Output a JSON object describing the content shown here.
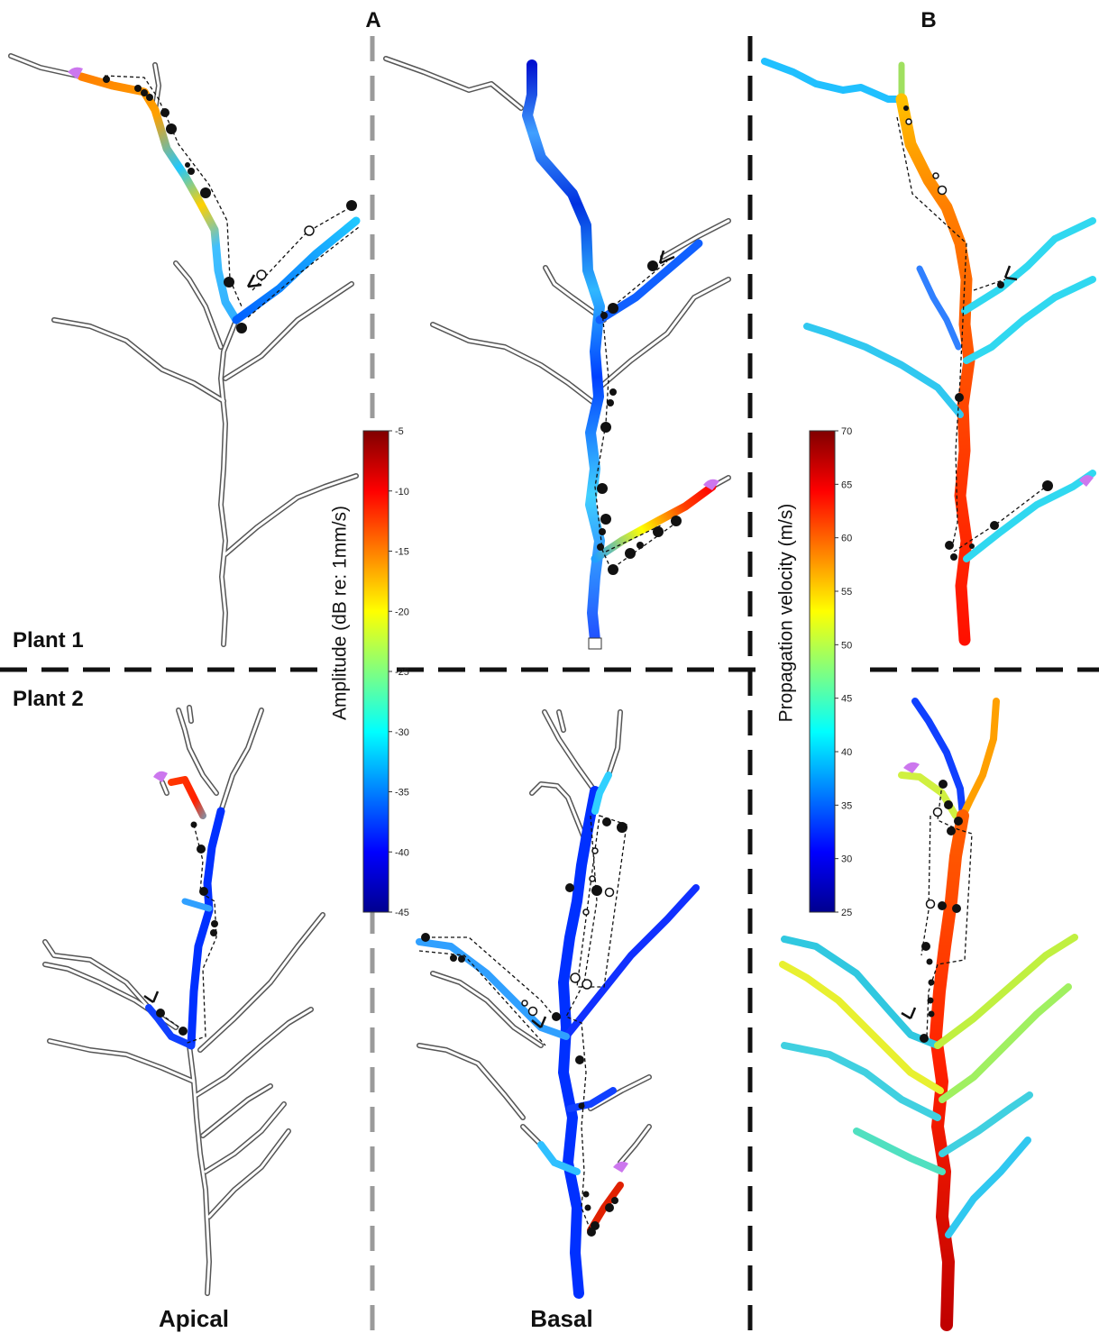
{
  "panels": {
    "a_label": "A",
    "b_label": "B",
    "plant1_label": "Plant 1",
    "plant2_label": "Plant 2",
    "apical_label": "Apical",
    "basal_label": "Basal"
  },
  "colorbars": [
    {
      "title": "Amplitude (dB re: 1mm/s)",
      "ticks": [
        "-5",
        "-10",
        "-15",
        "-20",
        "-25",
        "-30",
        "-35",
        "-40",
        "-45"
      ],
      "range": [
        -45,
        -5
      ],
      "colormap": "jet"
    },
    {
      "title": "Propagation velocity (m/s)",
      "ticks": [
        "70",
        "65",
        "60",
        "55",
        "50",
        "45",
        "40",
        "35",
        "30",
        "25"
      ],
      "range": [
        25,
        70
      ],
      "colormap": "jet"
    }
  ],
  "colors": {
    "outline": "#555555",
    "divider_black": "#111111",
    "divider_gray": "#9a9a9a",
    "insect": "#cc77ee",
    "jet": [
      "#00008f",
      "#0000ff",
      "#0080ff",
      "#00ffff",
      "#80ff80",
      "#ffff00",
      "#ff8000",
      "#ff0000",
      "#800000"
    ]
  }
}
